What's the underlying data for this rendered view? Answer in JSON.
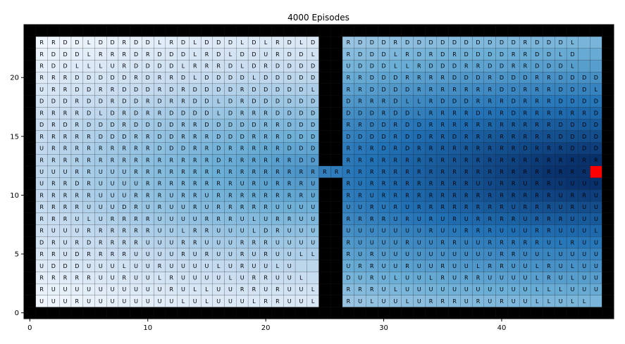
{
  "chart_data": {
    "type": "heatmap",
    "title": "4000 Episodes",
    "xlabel": "",
    "ylabel": "",
    "xlim": [
      -0.5,
      49.5
    ],
    "ylim": [
      -0.5,
      24.5
    ],
    "xticks": [
      0,
      10,
      20,
      30,
      40
    ],
    "yticks": [
      0,
      5,
      10,
      15,
      20
    ],
    "grid_size": [
      50,
      25
    ],
    "goal": {
      "x": 48,
      "y": 12,
      "color": "#ff0000"
    },
    "wall_color": "#000000",
    "colormap": "Blues",
    "wall_columns": [
      0,
      25,
      26,
      49
    ],
    "wall_rows": [
      0,
      24
    ],
    "corridor": {
      "y": 12,
      "cells": [
        {
          "x": 25,
          "letter": "R"
        },
        {
          "x": 26,
          "letter": "R"
        }
      ]
    },
    "policy_rows_left": [
      "RRDDLDDRDDLRDLDDDLDLRDLD",
      "RDDDLRRRDRDDDLRDLDDURDDL",
      "RDDLLLURDDDDLRRRDLDRDDDD",
      "RRRDDDDDRDRRDLDDDDLDDDDD",
      "URRDDRRDDDRDRDDDDRDDDDDL",
      "DDDRDDRDDRDRRDDLDRDDDDDD",
      "RRRRDLDRDRRDDDDLDRRRDDDD",
      "DRDRDDDRDDDDRRDDDDDRRDDD",
      "RRRRRDDDRRDDRRRDDDRRRDDD",
      "URRRRRRRRRDDDRRDRRRRRDDD",
      "RRRRRRRRRRRRRRRDRRRRRRDD",
      "UUURRUUURRRRRRRRRRRRRRRR",
      "URRDRUUUURRRRRRRRURURRRU",
      "RRRRRUUURRRURRURRRRRRRRU",
      "RRRRUUUDRURUURURRRRRUUUU",
      "RRRULURRRRUUUURRRULURRUU",
      "RUUURRRRRRUULRRUUULDRUUU",
      "DRURDRRRRUUURRUUURRRUUUU",
      "RRUDRRRRUUUURURUURURUULL",
      "UDDDUUULUURUUUULURUULU",
      "RRRRRUURUULRUUUULURRUUL",
      "RUUUUUUUUUURULLUURRURUUL",
      "UUURUUUUUUUULULUUULRRUUL"
    ],
    "policy_rows_right": [
      "RDDDRDDDDDDDDDDRDDDL",
      "RDDDLRDRDRDDDDRRDDLD",
      "UDDDLLRDDDRRDDRRDDDL",
      "RRDDDRRRRDDDRDDDRRDDDD",
      "RRDDDDRRRRRRRDDRRRDDDL",
      "DRRRDLLRDDDRRRDRRRDDDD",
      "DDDRDDLRRRRDRRDRRRRRRD",
      "RRDDRDDRRRRRRRRRRRDDDD",
      "DDDDRDDRRDRRRRRRRRDDDD",
      "RRRDRDRRRRRRRRRDRRRDDD",
      "RRRRRRRRRRRRRRRRRRRRRR",
      "RRRRRRRRRRRRRRRRRRRRRR",
      "RURRRRRRRRRUURRURRUUUU",
      "RRURRRRRRRRRRRRRRRURRU",
      "UURURURRRRRRRRURRRURUU",
      "RRRRURURURURRRRURRRUUU",
      "UUUUUUURUURRRUUURRUUUL",
      "RUUUURUURRUURRRRRULRUUU",
      "RURUUUUUUUUUURRUULUUUU",
      "URRUURUURUULRRUULRULUU",
      "DURULUULRURRUUUULRULUU",
      "RRRULUUUUUUUUUUULLLUUU",
      "RULUULURRRURURUULLULL"
    ]
  }
}
